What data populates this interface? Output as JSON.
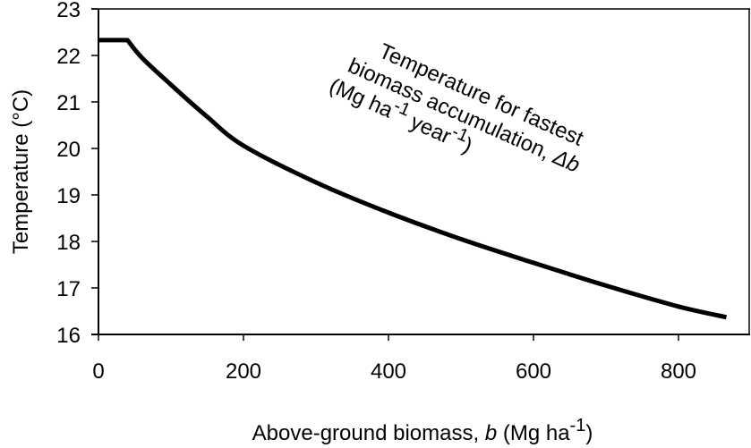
{
  "chart_data": {
    "type": "line",
    "title": "",
    "xlabel": "Above-ground biomass, b (Mg ha-1)",
    "xlabel_parts": {
      "pre": "Above-ground biomass, ",
      "italic": "b",
      "post": " (Mg ha",
      "sup": "-1",
      "close": ")"
    },
    "ylabel": "Temperature (°C)",
    "xlim": [
      0,
      900
    ],
    "ylim": [
      16,
      23
    ],
    "xticks": [
      0,
      200,
      400,
      600,
      800
    ],
    "yticks": [
      16,
      17,
      18,
      19,
      20,
      21,
      22,
      23
    ],
    "grid": false,
    "legend": null,
    "series": [
      {
        "name": "Temperature for fastest biomass accumulation, Δb (Mg ha-1 year-1)",
        "color": "#000000",
        "x": [
          0,
          40,
          60,
          100,
          150,
          200,
          300,
          400,
          500,
          600,
          700,
          800,
          866
        ],
        "y": [
          22.33,
          22.33,
          21.95,
          21.37,
          20.68,
          20.06,
          19.27,
          18.62,
          18.05,
          17.54,
          17.05,
          16.6,
          16.37
        ]
      }
    ],
    "annotation": {
      "line1": "Temperature for fastest",
      "line2_pre": "biomass accumulation, ",
      "line2_italic": "Δb",
      "line3_a": "(Mg ha",
      "line3_sup1": "-1",
      "line3_b": " year",
      "line3_sup2": "-1",
      "line3_c": ")"
    }
  }
}
